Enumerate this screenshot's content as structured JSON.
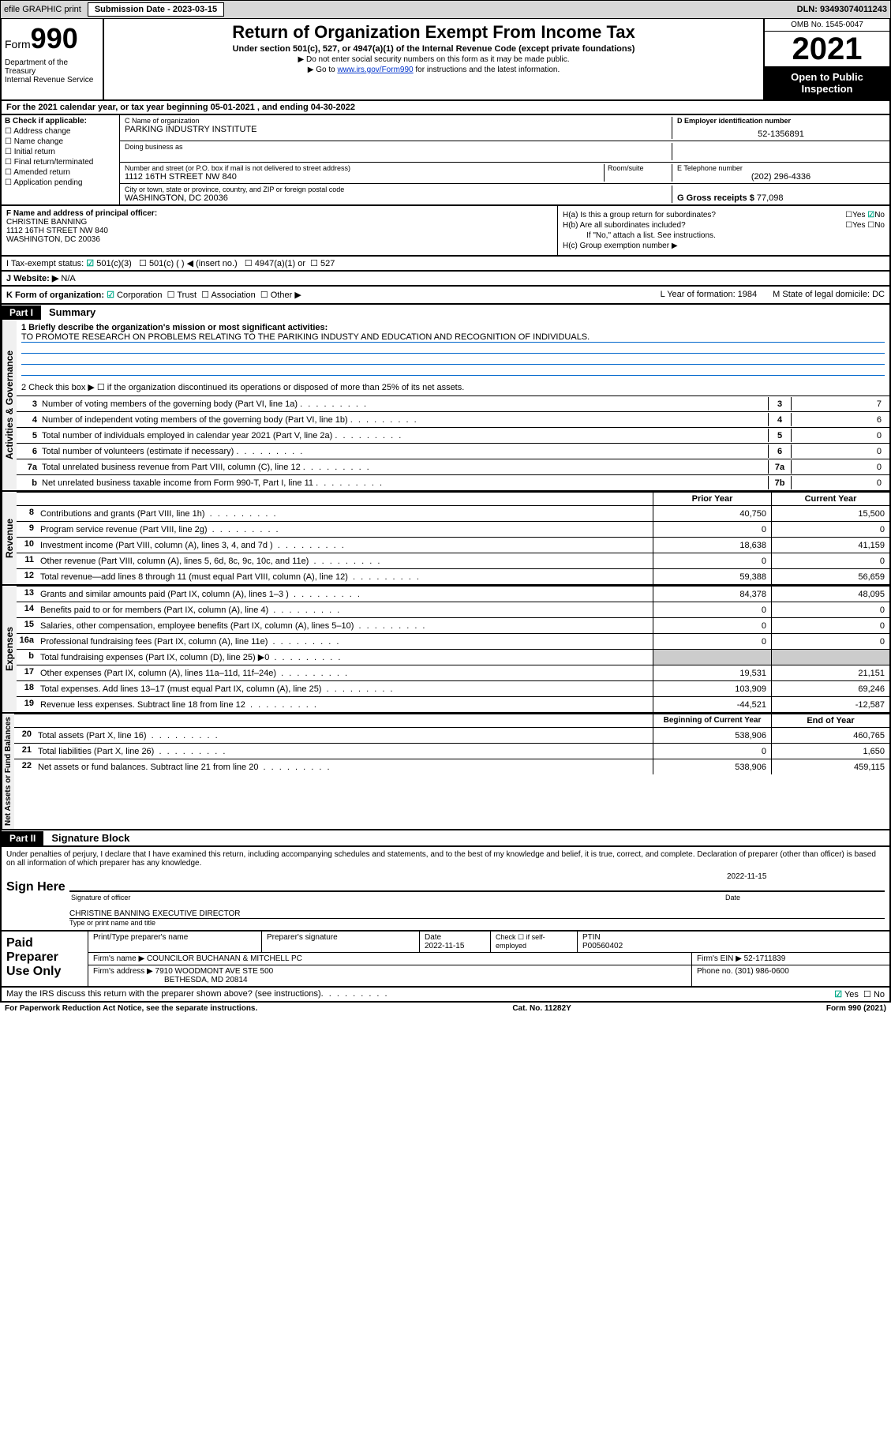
{
  "topbar": {
    "efile": "efile GRAPHIC print",
    "submission": "Submission Date - 2023-03-15",
    "dln": "DLN: 93493074011243"
  },
  "header": {
    "form_label": "Form",
    "form_number": "990",
    "title": "Return of Organization Exempt From Income Tax",
    "subtitle": "Under section 501(c), 527, or 4947(a)(1) of the Internal Revenue Code (except private foundations)",
    "note1": "▶ Do not enter social security numbers on this form as it may be made public.",
    "note2_pre": "▶ Go to ",
    "note2_link": "www.irs.gov/Form990",
    "note2_post": " for instructions and the latest information.",
    "omb": "OMB No. 1545-0047",
    "year": "2021",
    "inspection": "Open to Public Inspection",
    "dept": "Department of the Treasury\nInternal Revenue Service"
  },
  "period": "For the 2021 calendar year, or tax year beginning 05-01-2021   , and ending 04-30-2022",
  "boxB": {
    "label": "B Check if applicable:",
    "opts": [
      "Address change",
      "Name change",
      "Initial return",
      "Final return/terminated",
      "Amended return",
      "Application pending"
    ]
  },
  "boxC": {
    "name_label": "C Name of organization",
    "name": "PARKING INDUSTRY INSTITUTE",
    "dba_label": "Doing business as",
    "addr_label": "Number and street (or P.O. box if mail is not delivered to street address)",
    "room_label": "Room/suite",
    "addr": "1112 16TH STREET NW 840",
    "city_label": "City or town, state or province, country, and ZIP or foreign postal code",
    "city": "WASHINGTON, DC  20036"
  },
  "boxD": {
    "label": "D Employer identification number",
    "value": "52-1356891"
  },
  "boxE": {
    "label": "E Telephone number",
    "value": "(202) 296-4336"
  },
  "boxG": {
    "label": "G Gross receipts $",
    "value": "77,098"
  },
  "boxF": {
    "label": "F  Name and address of principal officer:",
    "name": "CHRISTINE BANNING",
    "addr1": "1112 16TH STREET NW 840",
    "addr2": "WASHINGTON, DC  20036"
  },
  "boxH": {
    "ha": "H(a)  Is this a group return for subordinates?",
    "ha_ans": "No",
    "hb": "H(b)  Are all subordinates included?",
    "hb_note": "If \"No,\" attach a list. See instructions.",
    "hc": "H(c)  Group exemption number ▶"
  },
  "rowI": {
    "label": "I    Tax-exempt status:",
    "opt1": "501(c)(3)",
    "opt2": "501(c) (   ) ◀ (insert no.)",
    "opt3": "4947(a)(1) or",
    "opt4": "527"
  },
  "rowJ": {
    "label": "J    Website: ▶",
    "value": "N/A"
  },
  "rowK": {
    "label": "K Form of organization:",
    "opts": [
      "Corporation",
      "Trust",
      "Association",
      "Other ▶"
    ],
    "L": "L Year of formation: 1984",
    "M": "M State of legal domicile: DC"
  },
  "partI": {
    "header": "Part I",
    "title": "Summary",
    "line1_label": "1  Briefly describe the organization's mission or most significant activities:",
    "line1_text": "TO PROMOTE RESEARCH ON PROBLEMS RELATING TO THE PARIKING INDUSTY AND EDUCATION AND RECOGNITION OF INDIVIDUALS.",
    "line2": "2   Check this box ▶ ☐  if the organization discontinued its operations or disposed of more than 25% of its net assets.",
    "rows_gov": [
      {
        "n": "3",
        "t": "Number of voting members of the governing body (Part VI, line 1a)",
        "box": "3",
        "v": "7"
      },
      {
        "n": "4",
        "t": "Number of independent voting members of the governing body (Part VI, line 1b)",
        "box": "4",
        "v": "6"
      },
      {
        "n": "5",
        "t": "Total number of individuals employed in calendar year 2021 (Part V, line 2a)",
        "box": "5",
        "v": "0"
      },
      {
        "n": "6",
        "t": "Total number of volunteers (estimate if necessary)",
        "box": "6",
        "v": "0"
      },
      {
        "n": "7a",
        "t": "Total unrelated business revenue from Part VIII, column (C), line 12",
        "box": "7a",
        "v": "0"
      },
      {
        "n": "b",
        "t": "Net unrelated business taxable income from Form 990-T, Part I, line 11",
        "box": "7b",
        "v": "0"
      }
    ],
    "col_headers": {
      "prior": "Prior Year",
      "current": "Current Year",
      "boc": "Beginning of Current Year",
      "eoy": "End of Year"
    },
    "revenue": [
      {
        "n": "8",
        "t": "Contributions and grants (Part VIII, line 1h)",
        "p": "40,750",
        "c": "15,500"
      },
      {
        "n": "9",
        "t": "Program service revenue (Part VIII, line 2g)",
        "p": "0",
        "c": "0"
      },
      {
        "n": "10",
        "t": "Investment income (Part VIII, column (A), lines 3, 4, and 7d )",
        "p": "18,638",
        "c": "41,159"
      },
      {
        "n": "11",
        "t": "Other revenue (Part VIII, column (A), lines 5, 6d, 8c, 9c, 10c, and 11e)",
        "p": "0",
        "c": "0"
      },
      {
        "n": "12",
        "t": "Total revenue—add lines 8 through 11 (must equal Part VIII, column (A), line 12)",
        "p": "59,388",
        "c": "56,659"
      }
    ],
    "expenses": [
      {
        "n": "13",
        "t": "Grants and similar amounts paid (Part IX, column (A), lines 1–3 )",
        "p": "84,378",
        "c": "48,095"
      },
      {
        "n": "14",
        "t": "Benefits paid to or for members (Part IX, column (A), line 4)",
        "p": "0",
        "c": "0"
      },
      {
        "n": "15",
        "t": "Salaries, other compensation, employee benefits (Part IX, column (A), lines 5–10)",
        "p": "0",
        "c": "0"
      },
      {
        "n": "16a",
        "t": "Professional fundraising fees (Part IX, column (A), line 11e)",
        "p": "0",
        "c": "0"
      },
      {
        "n": "b",
        "t": "Total fundraising expenses (Part IX, column (D), line 25) ▶0",
        "p": "",
        "c": "",
        "shaded": true
      },
      {
        "n": "17",
        "t": "Other expenses (Part IX, column (A), lines 11a–11d, 11f–24e)",
        "p": "19,531",
        "c": "21,151"
      },
      {
        "n": "18",
        "t": "Total expenses. Add lines 13–17 (must equal Part IX, column (A), line 25)",
        "p": "103,909",
        "c": "69,246"
      },
      {
        "n": "19",
        "t": "Revenue less expenses. Subtract line 18 from line 12",
        "p": "-44,521",
        "c": "-12,587"
      }
    ],
    "netassets": [
      {
        "n": "20",
        "t": "Total assets (Part X, line 16)",
        "p": "538,906",
        "c": "460,765"
      },
      {
        "n": "21",
        "t": "Total liabilities (Part X, line 26)",
        "p": "0",
        "c": "1,650"
      },
      {
        "n": "22",
        "t": "Net assets or fund balances. Subtract line 21 from line 20",
        "p": "538,906",
        "c": "459,115"
      }
    ],
    "sidebars": {
      "gov": "Activities & Governance",
      "rev": "Revenue",
      "exp": "Expenses",
      "net": "Net Assets or Fund Balances"
    }
  },
  "partII": {
    "header": "Part II",
    "title": "Signature Block",
    "declaration": "Under penalties of perjury, I declare that I have examined this return, including accompanying schedules and statements, and to the best of my knowledge and belief, it is true, correct, and complete. Declaration of preparer (other than officer) is based on all information of which preparer has any knowledge.",
    "sign_here": "Sign Here",
    "sig_officer": "Signature of officer",
    "sig_date": "2022-11-15",
    "date_label": "Date",
    "officer_name": "CHRISTINE BANNING  EXECUTIVE DIRECTOR",
    "type_label": "Type or print name and title"
  },
  "paid": {
    "title": "Paid Preparer Use Only",
    "h1": "Print/Type preparer's name",
    "h2": "Preparer's signature",
    "h3": "Date",
    "h4": "Check ☐ if self-employed",
    "h5": "PTIN",
    "date": "2022-11-15",
    "ptin": "P00560402",
    "firm_label": "Firm's name   ▶",
    "firm": "COUNCILOR BUCHANAN & MITCHELL PC",
    "ein_label": "Firm's EIN ▶",
    "ein": "52-1711839",
    "addr_label": "Firm's address ▶",
    "addr1": "7910 WOODMONT AVE STE 500",
    "addr2": "BETHESDA, MD  20814",
    "phone_label": "Phone no.",
    "phone": "(301) 986-0600"
  },
  "footer": {
    "discuss": "May the IRS discuss this return with the preparer shown above? (see instructions)",
    "yes": "Yes",
    "no": "No",
    "pra": "For Paperwork Reduction Act Notice, see the separate instructions.",
    "cat": "Cat. No. 11282Y",
    "form": "Form 990 (2021)"
  }
}
